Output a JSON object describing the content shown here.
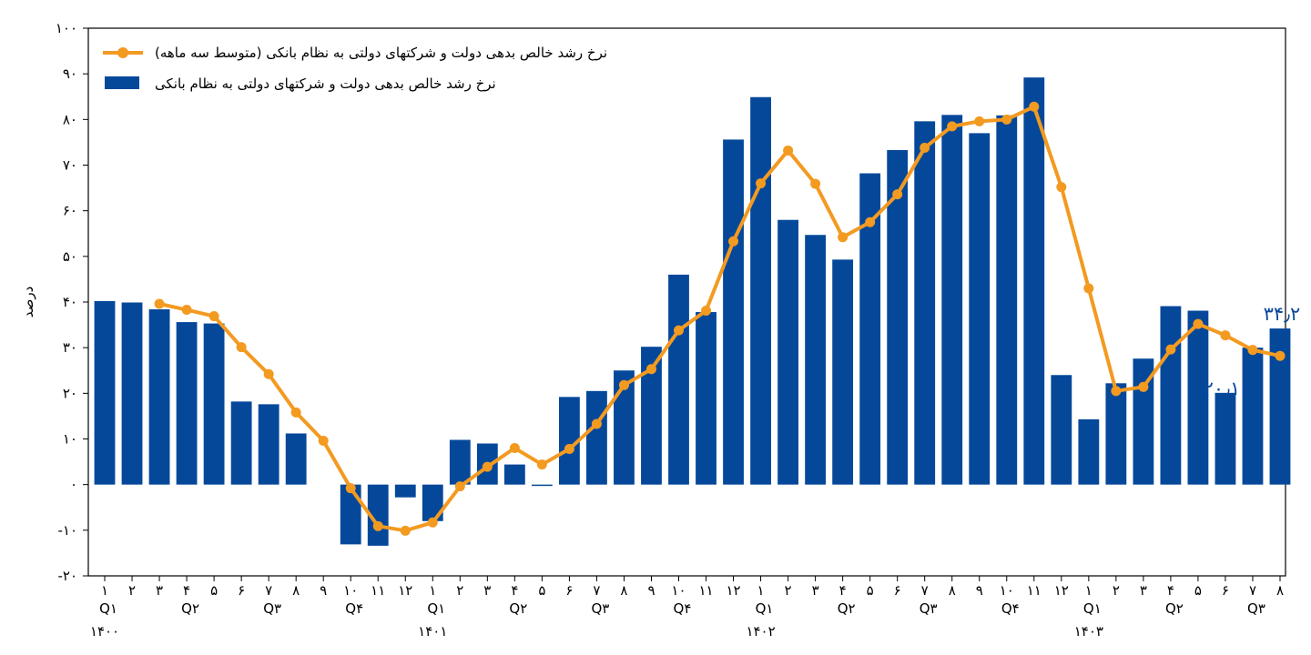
{
  "chart_data": {
    "type": "bar",
    "ylabel": "درصد",
    "ylim": [
      -20,
      100
    ],
    "yticks": [
      -20,
      -10,
      0,
      10,
      20,
      30,
      40,
      50,
      60,
      70,
      80,
      90,
      100
    ],
    "ytick_labels": [
      "-۲۰",
      "-۱۰",
      "۰",
      "۱۰",
      "۲۰",
      "۳۰",
      "۴۰",
      "۵۰",
      "۶۰",
      "۷۰",
      "۸۰",
      "۹۰",
      "۱۰۰"
    ],
    "categories": [
      "۱",
      "۲",
      "۳",
      "۴",
      "۵",
      "۶",
      "۷",
      "۸",
      "۹",
      "۱۰",
      "۱۱",
      "۱۲",
      "۱",
      "۲",
      "۳",
      "۴",
      "۵",
      "۶",
      "۷",
      "۸",
      "۹",
      "۱۰",
      "۱۱",
      "۱۲",
      "۱",
      "۲",
      "۳",
      "۴",
      "۵",
      "۶",
      "۷",
      "۸",
      "۹",
      "۱۰",
      "۱۱",
      "۱۲",
      "۱",
      "۲",
      "۳",
      "۴",
      "۵",
      "۶",
      "۷",
      "۸"
    ],
    "quarter_labels": [
      {
        "index": 0,
        "label": "Q۱"
      },
      {
        "index": 3,
        "label": "Q۲"
      },
      {
        "index": 6,
        "label": "Q۳"
      },
      {
        "index": 9,
        "label": "Q۴"
      },
      {
        "index": 12,
        "label": "Q۱"
      },
      {
        "index": 15,
        "label": "Q۲"
      },
      {
        "index": 18,
        "label": "Q۳"
      },
      {
        "index": 21,
        "label": "Q۴"
      },
      {
        "index": 24,
        "label": "Q۱"
      },
      {
        "index": 27,
        "label": "Q۲"
      },
      {
        "index": 30,
        "label": "Q۳"
      },
      {
        "index": 33,
        "label": "Q۴"
      },
      {
        "index": 36,
        "label": "Q۱"
      },
      {
        "index": 39,
        "label": "Q۲"
      },
      {
        "index": 42,
        "label": "Q۳"
      }
    ],
    "year_labels": [
      {
        "index": 0,
        "label": "۱۴۰۰"
      },
      {
        "index": 12,
        "label": "۱۴۰۱"
      },
      {
        "index": 24,
        "label": "۱۴۰۲"
      },
      {
        "index": 36,
        "label": "۱۴۰۳"
      }
    ],
    "series": [
      {
        "name": "نرخ رشد خالص بدهی دولت و شرکتهای دولتی به نظام بانکی",
        "type": "bar",
        "color": "#05489a",
        "values": [
          40.2,
          39.9,
          38.4,
          35.6,
          35.3,
          18.2,
          17.6,
          11.2,
          null,
          -13.1,
          -13.4,
          -2.8,
          -8.0,
          9.8,
          9.0,
          4.4,
          -0.3,
          19.2,
          20.5,
          25.0,
          30.2,
          46.0,
          37.8,
          75.6,
          84.9,
          58.0,
          54.7,
          49.3,
          68.2,
          73.3,
          79.6,
          81.0,
          77.0,
          80.9,
          89.2,
          24.0,
          14.3,
          22.2,
          27.6,
          39.1,
          38.1,
          20.1,
          30.0,
          34.2
        ]
      },
      {
        "name": "نرخ رشد خالص بدهی دولت و شرکتهای دولتی به نظام بانکی (متوسط سه ماهه)",
        "type": "line",
        "color": "#f39a21",
        "values": [
          null,
          null,
          39.6,
          38.3,
          36.9,
          30.1,
          24.2,
          15.8,
          9.6,
          -0.8,
          -9.1,
          -10.1,
          -8.3,
          -0.4,
          3.9,
          8.0,
          4.4,
          7.8,
          13.3,
          21.8,
          25.3,
          33.8,
          38.1,
          53.3,
          66.0,
          73.2,
          65.9,
          54.2,
          57.5,
          63.6,
          73.8,
          78.5,
          79.6,
          80.0,
          82.8,
          65.2,
          43.0,
          20.5,
          21.4,
          29.6,
          35.2,
          32.7,
          29.5,
          28.2
        ]
      }
    ],
    "annotations": [
      {
        "text": "۲۰٫۱",
        "index": 41,
        "value": 20.1
      },
      {
        "text": "۳۴٫۲",
        "index": 43,
        "value": 34.2
      }
    ],
    "legend_position": "top-left",
    "grid": false
  }
}
